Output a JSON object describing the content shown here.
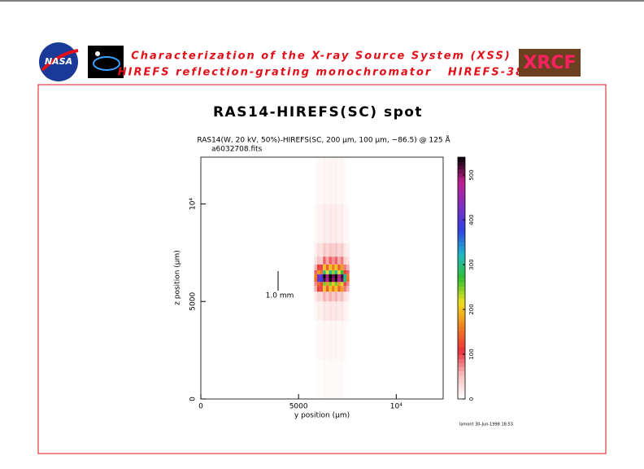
{
  "header": {
    "logo_left": "NASA",
    "line1": "Characterization of the X-ray Source System (XSS)",
    "line2": "HIREFS reflection-grating monochromator   HIREFS-38",
    "logo_right": "XRCF"
  },
  "chart_data": {
    "type": "heatmap",
    "title": "RAS14-HIREFS(SC) spot",
    "subtitle": "RAS14(W, 20 kV, 50%)-HIREFS(SC, 200 µm, 100 µm, −86.5) @ 125 Å",
    "filename": "a6032708.fits",
    "xlabel": "y position (µm)",
    "ylabel": "z position (µm)",
    "xlim": [
      0,
      12400
    ],
    "ylim": [
      0,
      12400
    ],
    "xticks": [
      0,
      5000,
      {
        "value": 10000,
        "label": "10⁴"
      }
    ],
    "yticks": [
      0,
      5000,
      {
        "value": 10000,
        "label": "10⁴"
      }
    ],
    "xbins": [
      5800,
      5950,
      6100,
      6250,
      6400,
      6550,
      6700,
      6850,
      7000,
      7150,
      7300,
      7450,
      7600
    ],
    "ybins": [
      0,
      2000,
      4000,
      5000,
      5500,
      5800,
      6000,
      6200,
      6400,
      6600,
      6900,
      7300,
      8000,
      10000,
      12400
    ],
    "values": [
      [
        2,
        3,
        3,
        5,
        4,
        5,
        4,
        5,
        4,
        5,
        2,
        2
      ],
      [
        3,
        6,
        5,
        10,
        7,
        10,
        8,
        10,
        7,
        9,
        4,
        3
      ],
      [
        8,
        15,
        13,
        25,
        18,
        25,
        20,
        25,
        18,
        23,
        10,
        8
      ],
      [
        18,
        36,
        30,
        60,
        42,
        60,
        48,
        60,
        42,
        54,
        24,
        18
      ],
      [
        60,
        120,
        100,
        200,
        140,
        200,
        160,
        200,
        140,
        180,
        80,
        60
      ],
      [
        75,
        150,
        125,
        250,
        175,
        250,
        200,
        250,
        175,
        225,
        100,
        75
      ],
      [
        150,
        420,
        380,
        520,
        480,
        530,
        500,
        530,
        480,
        510,
        300,
        150
      ],
      [
        160,
        430,
        400,
        540,
        490,
        540,
        510,
        540,
        490,
        520,
        310,
        160
      ],
      [
        90,
        180,
        150,
        300,
        210,
        300,
        240,
        300,
        210,
        270,
        120,
        90
      ],
      [
        60,
        120,
        100,
        200,
        140,
        200,
        160,
        200,
        140,
        180,
        80,
        60
      ],
      [
        27,
        54,
        45,
        90,
        63,
        90,
        72,
        90,
        63,
        81,
        36,
        27
      ],
      [
        15,
        30,
        25,
        50,
        35,
        50,
        40,
        50,
        35,
        45,
        20,
        15
      ],
      [
        6,
        12,
        10,
        20,
        14,
        20,
        16,
        20,
        14,
        18,
        8,
        6
      ],
      [
        3,
        6,
        5,
        10,
        7,
        10,
        8,
        10,
        7,
        9,
        4,
        3
      ]
    ],
    "zlim": [
      0,
      540
    ],
    "zticks": [
      0,
      100,
      200,
      300,
      400,
      500
    ],
    "colormap": [
      "#ffffff",
      "#f7c0c0",
      "#e8303a",
      "#f08020",
      "#f0e020",
      "#30c030",
      "#20b8c8",
      "#3040e0",
      "#8030c0",
      "#c0208f",
      "#000000"
    ],
    "scalebar": {
      "label": "1.0 mm",
      "length": 1000
    },
    "footer": "lamont 30-Jun-1998 18:53"
  }
}
